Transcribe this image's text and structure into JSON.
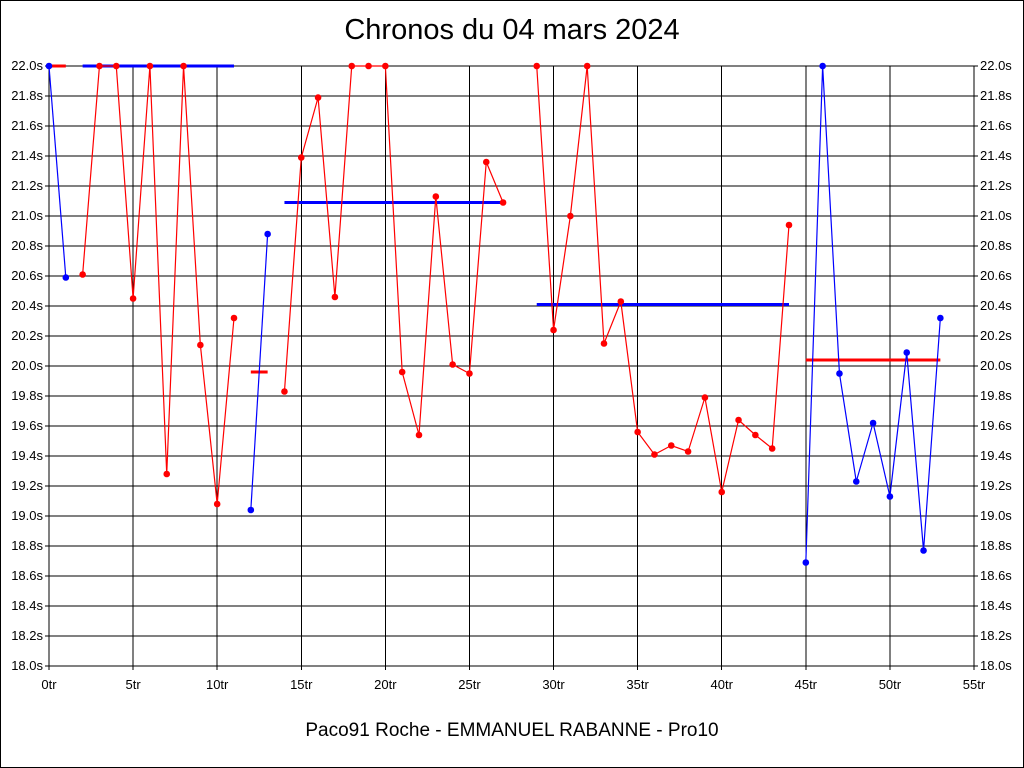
{
  "chart_data": {
    "type": "line",
    "title": "Chronos du 04 mars 2024",
    "subtitle": "Paco91 Roche - EMMANUEL RABANNE - Pro10",
    "xlim": [
      0,
      55
    ],
    "ylim": [
      18.0,
      22.0
    ],
    "x_ticks": [
      0,
      5,
      10,
      15,
      20,
      25,
      30,
      35,
      40,
      45,
      50,
      55
    ],
    "x_tick_labels": [
      "0tr",
      "5tr",
      "10tr",
      "15tr",
      "20tr",
      "25tr",
      "30tr",
      "35tr",
      "40tr",
      "45tr",
      "50tr",
      "55tr"
    ],
    "y_ticks": [
      18.0,
      18.2,
      18.4,
      18.6,
      18.8,
      19.0,
      19.2,
      19.4,
      19.6,
      19.8,
      20.0,
      20.2,
      20.4,
      20.6,
      20.8,
      21.0,
      21.2,
      21.4,
      21.6,
      21.8,
      22.0
    ],
    "y_tick_labels": [
      "18.0s",
      "18.2s",
      "18.4s",
      "18.6s",
      "18.8s",
      "19.0s",
      "19.2s",
      "19.4s",
      "19.6s",
      "19.8s",
      "20.0s",
      "20.2s",
      "20.4s",
      "20.6s",
      "20.8s",
      "21.0s",
      "21.2s",
      "21.4s",
      "21.6s",
      "21.8s",
      "22.0s"
    ],
    "grid": true,
    "colors": {
      "blue": "#0000ff",
      "red": "#ff0000",
      "axis": "#000000"
    },
    "segments": [
      {
        "color": "blue",
        "points": [
          [
            0,
            22.0
          ],
          [
            1,
            20.59
          ]
        ]
      },
      {
        "color": "red",
        "points": [
          [
            2,
            20.61
          ],
          [
            3,
            22.0
          ],
          [
            4,
            22.0
          ],
          [
            5,
            20.45
          ],
          [
            6,
            22.0
          ],
          [
            7,
            19.28
          ],
          [
            8,
            22.0
          ],
          [
            9,
            20.14
          ],
          [
            10,
            19.08
          ],
          [
            11,
            20.32
          ]
        ]
      },
      {
        "color": "blue",
        "points": [
          [
            12,
            19.04
          ],
          [
            13,
            20.88
          ]
        ]
      },
      {
        "color": "red",
        "points": [
          [
            14,
            19.83
          ],
          [
            15,
            21.39
          ],
          [
            16,
            21.79
          ],
          [
            17,
            20.46
          ],
          [
            18,
            22.0
          ],
          [
            19,
            22.0
          ],
          [
            20,
            22.0
          ],
          [
            21,
            19.96
          ],
          [
            22,
            19.54
          ],
          [
            23,
            21.13
          ],
          [
            24,
            20.01
          ],
          [
            25,
            19.95
          ],
          [
            26,
            21.36
          ],
          [
            27,
            21.09
          ]
        ]
      },
      {
        "color": "red",
        "points": [
          [
            29,
            22.0
          ],
          [
            30,
            20.24
          ],
          [
            31,
            21.0
          ],
          [
            32,
            22.0
          ],
          [
            33,
            20.15
          ],
          [
            34,
            20.43
          ],
          [
            35,
            19.56
          ],
          [
            36,
            19.41
          ],
          [
            37,
            19.47
          ],
          [
            38,
            19.43
          ],
          [
            39,
            19.79
          ],
          [
            40,
            19.16
          ],
          [
            41,
            19.64
          ],
          [
            42,
            19.54
          ],
          [
            43,
            19.45
          ],
          [
            44,
            20.94
          ]
        ]
      },
      {
        "color": "blue",
        "points": [
          [
            45,
            18.69
          ],
          [
            46,
            22.0
          ],
          [
            47,
            19.95
          ],
          [
            48,
            19.23
          ],
          [
            49,
            19.62
          ],
          [
            50,
            19.13
          ],
          [
            51,
            20.09
          ],
          [
            52,
            18.77
          ],
          [
            53,
            20.32
          ]
        ]
      }
    ],
    "averages": [
      {
        "color": "red",
        "x_start": 0,
        "x_end": 1,
        "y": 22.0
      },
      {
        "color": "blue",
        "x_start": 2,
        "x_end": 11,
        "y": 22.0
      },
      {
        "color": "red",
        "x_start": 12,
        "x_end": 13,
        "y": 19.96
      },
      {
        "color": "blue",
        "x_start": 14,
        "x_end": 27,
        "y": 21.09
      },
      {
        "color": "blue",
        "x_start": 29,
        "x_end": 44,
        "y": 20.41
      },
      {
        "color": "red",
        "x_start": 45,
        "x_end": 53,
        "y": 20.04
      }
    ]
  }
}
